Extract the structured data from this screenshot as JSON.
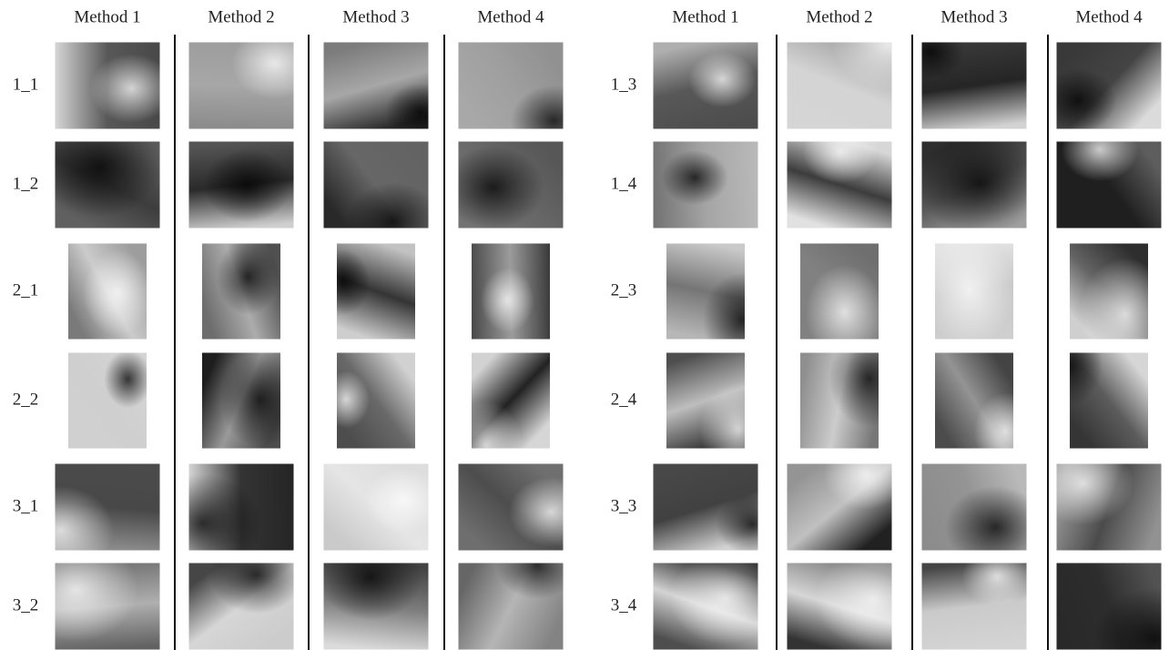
{
  "panels": [
    {
      "headers": [
        "Method 1",
        "Method 2",
        "Method 3",
        "Method 4"
      ],
      "rows": [
        "1_1",
        "1_2",
        "2_1",
        "2_2",
        "3_1",
        "3_2"
      ]
    },
    {
      "headers": [
        "Method 1",
        "Method 2",
        "Method 3",
        "Method 4"
      ],
      "rows": [
        "1_3",
        "1_4",
        "2_3",
        "2_4",
        "3_3",
        "3_4"
      ]
    }
  ]
}
